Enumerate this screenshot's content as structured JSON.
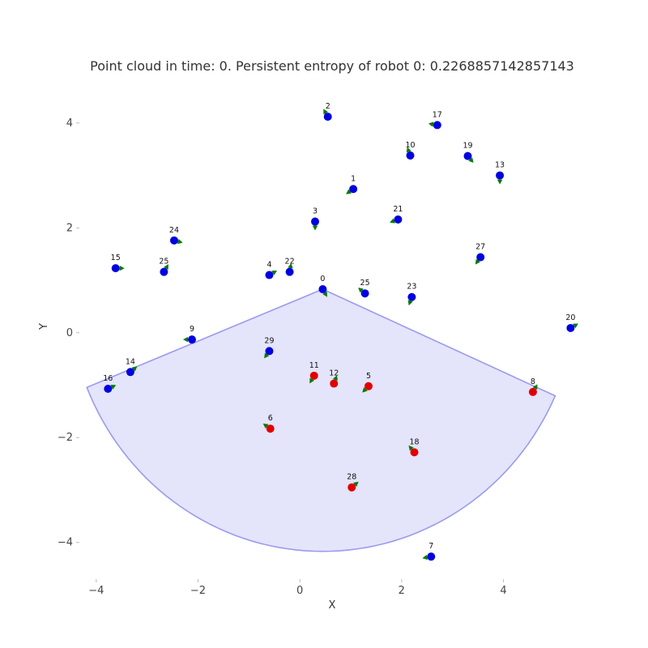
{
  "chart_data": {
    "type": "scatter",
    "title": "Point cloud in time: 0. Persistent entropy of robot 0: 0.2268857142857143",
    "xlabel": "X",
    "ylabel": "Y",
    "xlim": [
      -4.3,
      5.6
    ],
    "ylim": [
      -4.7,
      4.6
    ],
    "xticks": [
      -4,
      -2,
      0,
      2,
      4
    ],
    "yticks": [
      -4,
      -2,
      0,
      2,
      4
    ],
    "grid": false,
    "colors": {
      "robot": "#0000e0",
      "detected": "#e00000",
      "heading": "#007a00",
      "sensor_fill": "#e3e3fb",
      "sensor_edge": "#9a9aee"
    },
    "sensor_sector": {
      "origin": [
        0.45,
        0.83
      ],
      "radius": 5.0,
      "start_angle_deg": 202,
      "end_angle_deg": 337
    },
    "points": [
      {
        "id": "0",
        "x": 0.45,
        "y": 0.83,
        "heading_deg": 300,
        "status": "robot"
      },
      {
        "id": "1",
        "x": 1.05,
        "y": 2.74,
        "heading_deg": 215,
        "status": "robot"
      },
      {
        "id": "2",
        "x": 0.55,
        "y": 4.12,
        "heading_deg": 120,
        "status": "robot"
      },
      {
        "id": "3",
        "x": 0.3,
        "y": 2.12,
        "heading_deg": 270,
        "status": "robot"
      },
      {
        "id": "4",
        "x": -0.6,
        "y": 1.1,
        "heading_deg": 30,
        "status": "robot"
      },
      {
        "id": "5",
        "x": 1.35,
        "y": -1.02,
        "heading_deg": 225,
        "status": "detected"
      },
      {
        "id": "6",
        "x": -0.58,
        "y": -1.83,
        "heading_deg": 145,
        "status": "detected"
      },
      {
        "id": "7",
        "x": 2.58,
        "y": -4.27,
        "heading_deg": 190,
        "status": "robot"
      },
      {
        "id": "8",
        "x": 4.58,
        "y": -1.13,
        "heading_deg": 60,
        "status": "detected"
      },
      {
        "id": "9",
        "x": -2.12,
        "y": -0.13,
        "heading_deg": 180,
        "status": "robot"
      },
      {
        "id": "10",
        "x": 2.17,
        "y": 3.38,
        "heading_deg": 110,
        "status": "robot"
      },
      {
        "id": "11",
        "x": 0.28,
        "y": -0.82,
        "heading_deg": 240,
        "status": "detected"
      },
      {
        "id": "12",
        "x": 0.67,
        "y": -0.97,
        "heading_deg": 70,
        "status": "detected"
      },
      {
        "id": "13",
        "x": 3.93,
        "y": 3.0,
        "heading_deg": 270,
        "status": "robot"
      },
      {
        "id": "14",
        "x": -3.33,
        "y": -0.75,
        "heading_deg": 40,
        "status": "robot"
      },
      {
        "id": "15",
        "x": -3.62,
        "y": 1.23,
        "heading_deg": 0,
        "status": "robot"
      },
      {
        "id": "16",
        "x": -3.77,
        "y": -1.07,
        "heading_deg": 25,
        "status": "robot"
      },
      {
        "id": "17",
        "x": 2.7,
        "y": 3.96,
        "heading_deg": 170,
        "status": "robot"
      },
      {
        "id": "18",
        "x": 2.25,
        "y": -2.28,
        "heading_deg": 130,
        "status": "detected"
      },
      {
        "id": "19",
        "x": 3.3,
        "y": 3.37,
        "heading_deg": 310,
        "status": "robot"
      },
      {
        "id": "20",
        "x": 5.32,
        "y": 0.09,
        "heading_deg": 30,
        "status": "robot"
      },
      {
        "id": "21",
        "x": 1.93,
        "y": 2.16,
        "heading_deg": 200,
        "status": "robot"
      },
      {
        "id": "22",
        "x": -0.2,
        "y": 1.16,
        "heading_deg": 80,
        "status": "robot"
      },
      {
        "id": "23",
        "x": 2.2,
        "y": 0.68,
        "heading_deg": 250,
        "status": "robot"
      },
      {
        "id": "24",
        "x": -2.47,
        "y": 1.76,
        "heading_deg": 345,
        "status": "robot"
      },
      {
        "id": "25",
        "x": -2.67,
        "y": 1.16,
        "heading_deg": 60,
        "status": "robot"
      },
      {
        "id": "25",
        "x": 1.28,
        "y": 0.75,
        "heading_deg": 140,
        "status": "robot"
      },
      {
        "id": "27",
        "x": 3.55,
        "y": 1.44,
        "heading_deg": 235,
        "status": "robot"
      },
      {
        "id": "28",
        "x": 1.02,
        "y": -2.95,
        "heading_deg": 40,
        "status": "detected"
      },
      {
        "id": "29",
        "x": -0.6,
        "y": -0.35,
        "heading_deg": 235,
        "status": "robot"
      }
    ]
  }
}
